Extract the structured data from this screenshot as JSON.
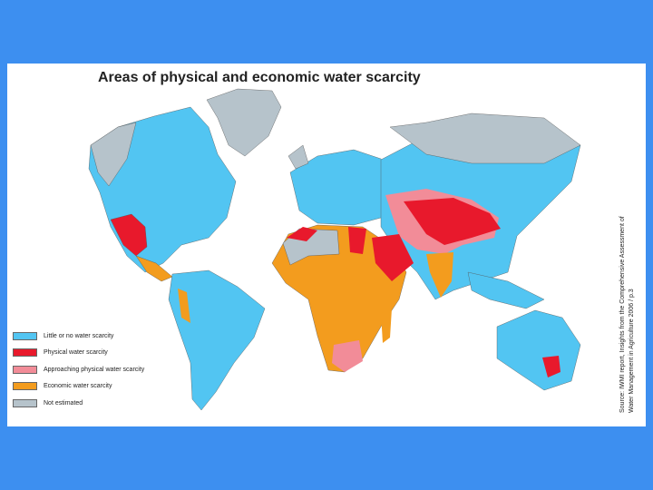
{
  "title": "Areas of physical and economic water scarcity",
  "legend": [
    {
      "label": "Little or no water scarcity",
      "color": "#52c5f2"
    },
    {
      "label": "Physical water scarcity",
      "color": "#e8192c"
    },
    {
      "label": "Approaching physical water scarcity",
      "color": "#f28c98"
    },
    {
      "label": "Economic water scarcity",
      "color": "#f39c1e"
    },
    {
      "label": "Not estimated",
      "color": "#b6c3cb"
    }
  ],
  "source": [
    "Source: IWMI report, Insights from the Comprehensive Assessment of",
    "Water Management in Agriculture 2006 / p.3"
  ]
}
